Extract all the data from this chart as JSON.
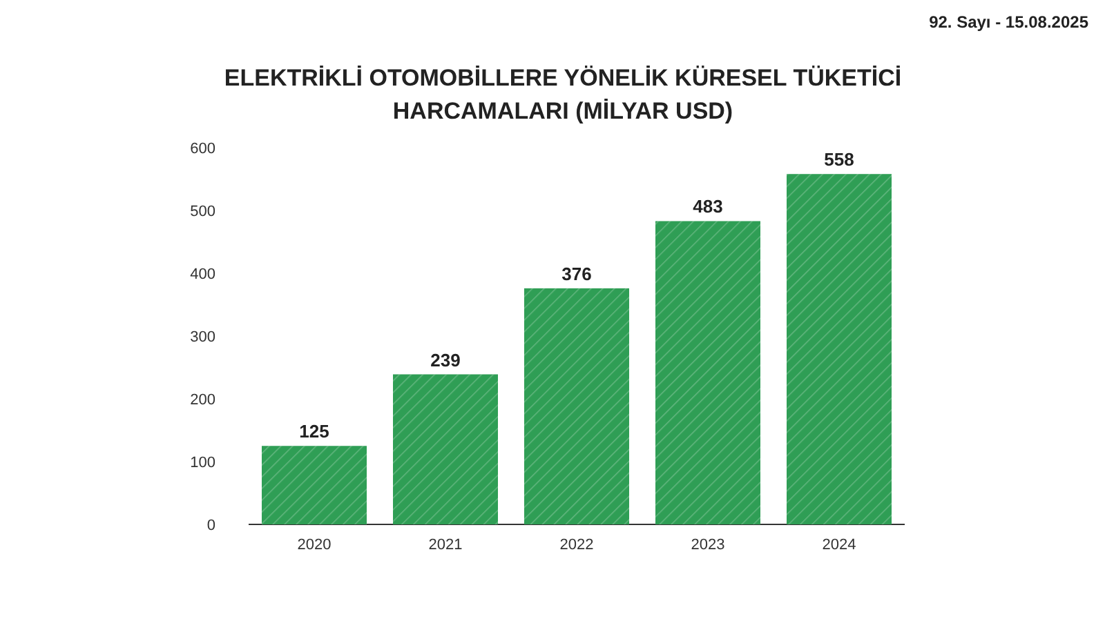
{
  "chart_data": {
    "type": "bar",
    "title": "ELEKTRİKLİ OTOMOBİLLERE YÖNELİK KÜRESEL TÜKETİCİ HARCAMALARI (MİLYAR USD)",
    "categories": [
      "2020",
      "2021",
      "2022",
      "2023",
      "2024"
    ],
    "values": [
      125,
      239,
      376,
      483,
      558
    ],
    "color": "#2f9e55",
    "ylim": [
      0,
      600
    ],
    "yticks": [
      0,
      100,
      200,
      300,
      400,
      500,
      600
    ],
    "data_labels": true,
    "annotations": [
      "92. Sayı - 15.08.2025"
    ]
  }
}
